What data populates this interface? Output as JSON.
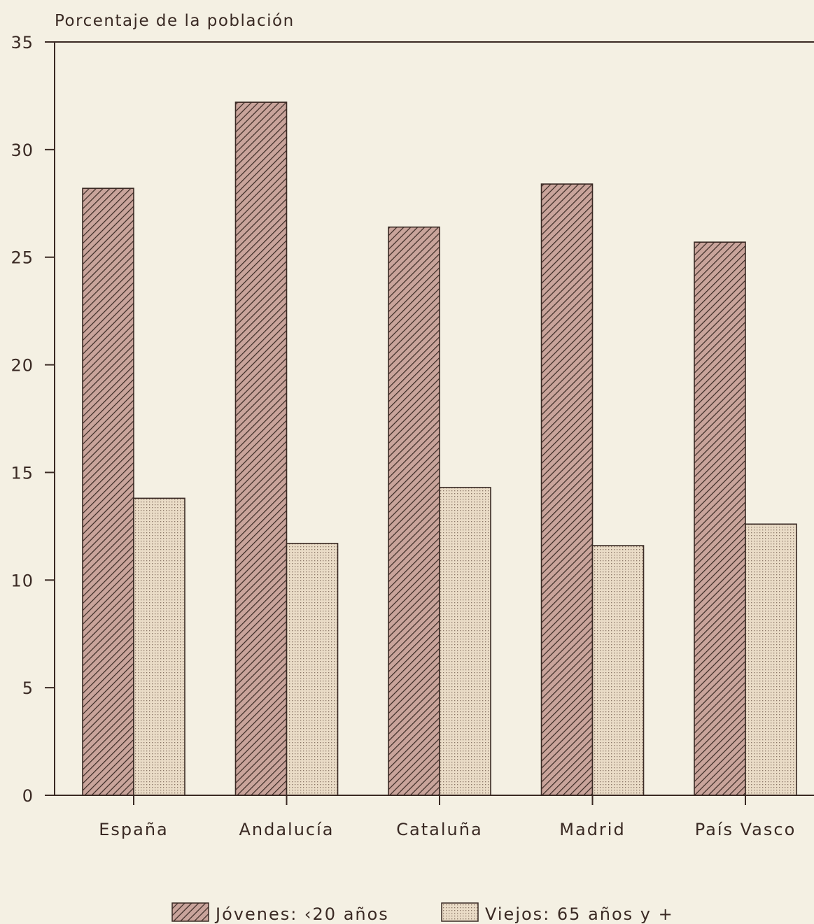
{
  "chart_data": {
    "type": "bar",
    "ylabel": "Porcentaje de la población",
    "ylim": [
      0,
      35
    ],
    "yticks": [
      "0",
      "5",
      "10",
      "15",
      "20",
      "25",
      "30",
      "35"
    ],
    "categories": [
      "España",
      "Andalucía",
      "Cataluña",
      "Madrid",
      "País Vasco"
    ],
    "series": [
      {
        "name": "Jóvenes: ‹20 años",
        "values": [
          28.2,
          32.2,
          26.4,
          28.4,
          25.7
        ]
      },
      {
        "name": "Viejos: 65 años y +",
        "values": [
          13.8,
          11.7,
          14.3,
          11.6,
          12.6
        ]
      }
    ],
    "legend_position": "bottom",
    "grid": false,
    "colors": {
      "axis": "#3a2a24",
      "youth_fill": "#c9a49b",
      "elderly_fill": "#eadcc7",
      "hatch": "#3a2a24"
    }
  }
}
